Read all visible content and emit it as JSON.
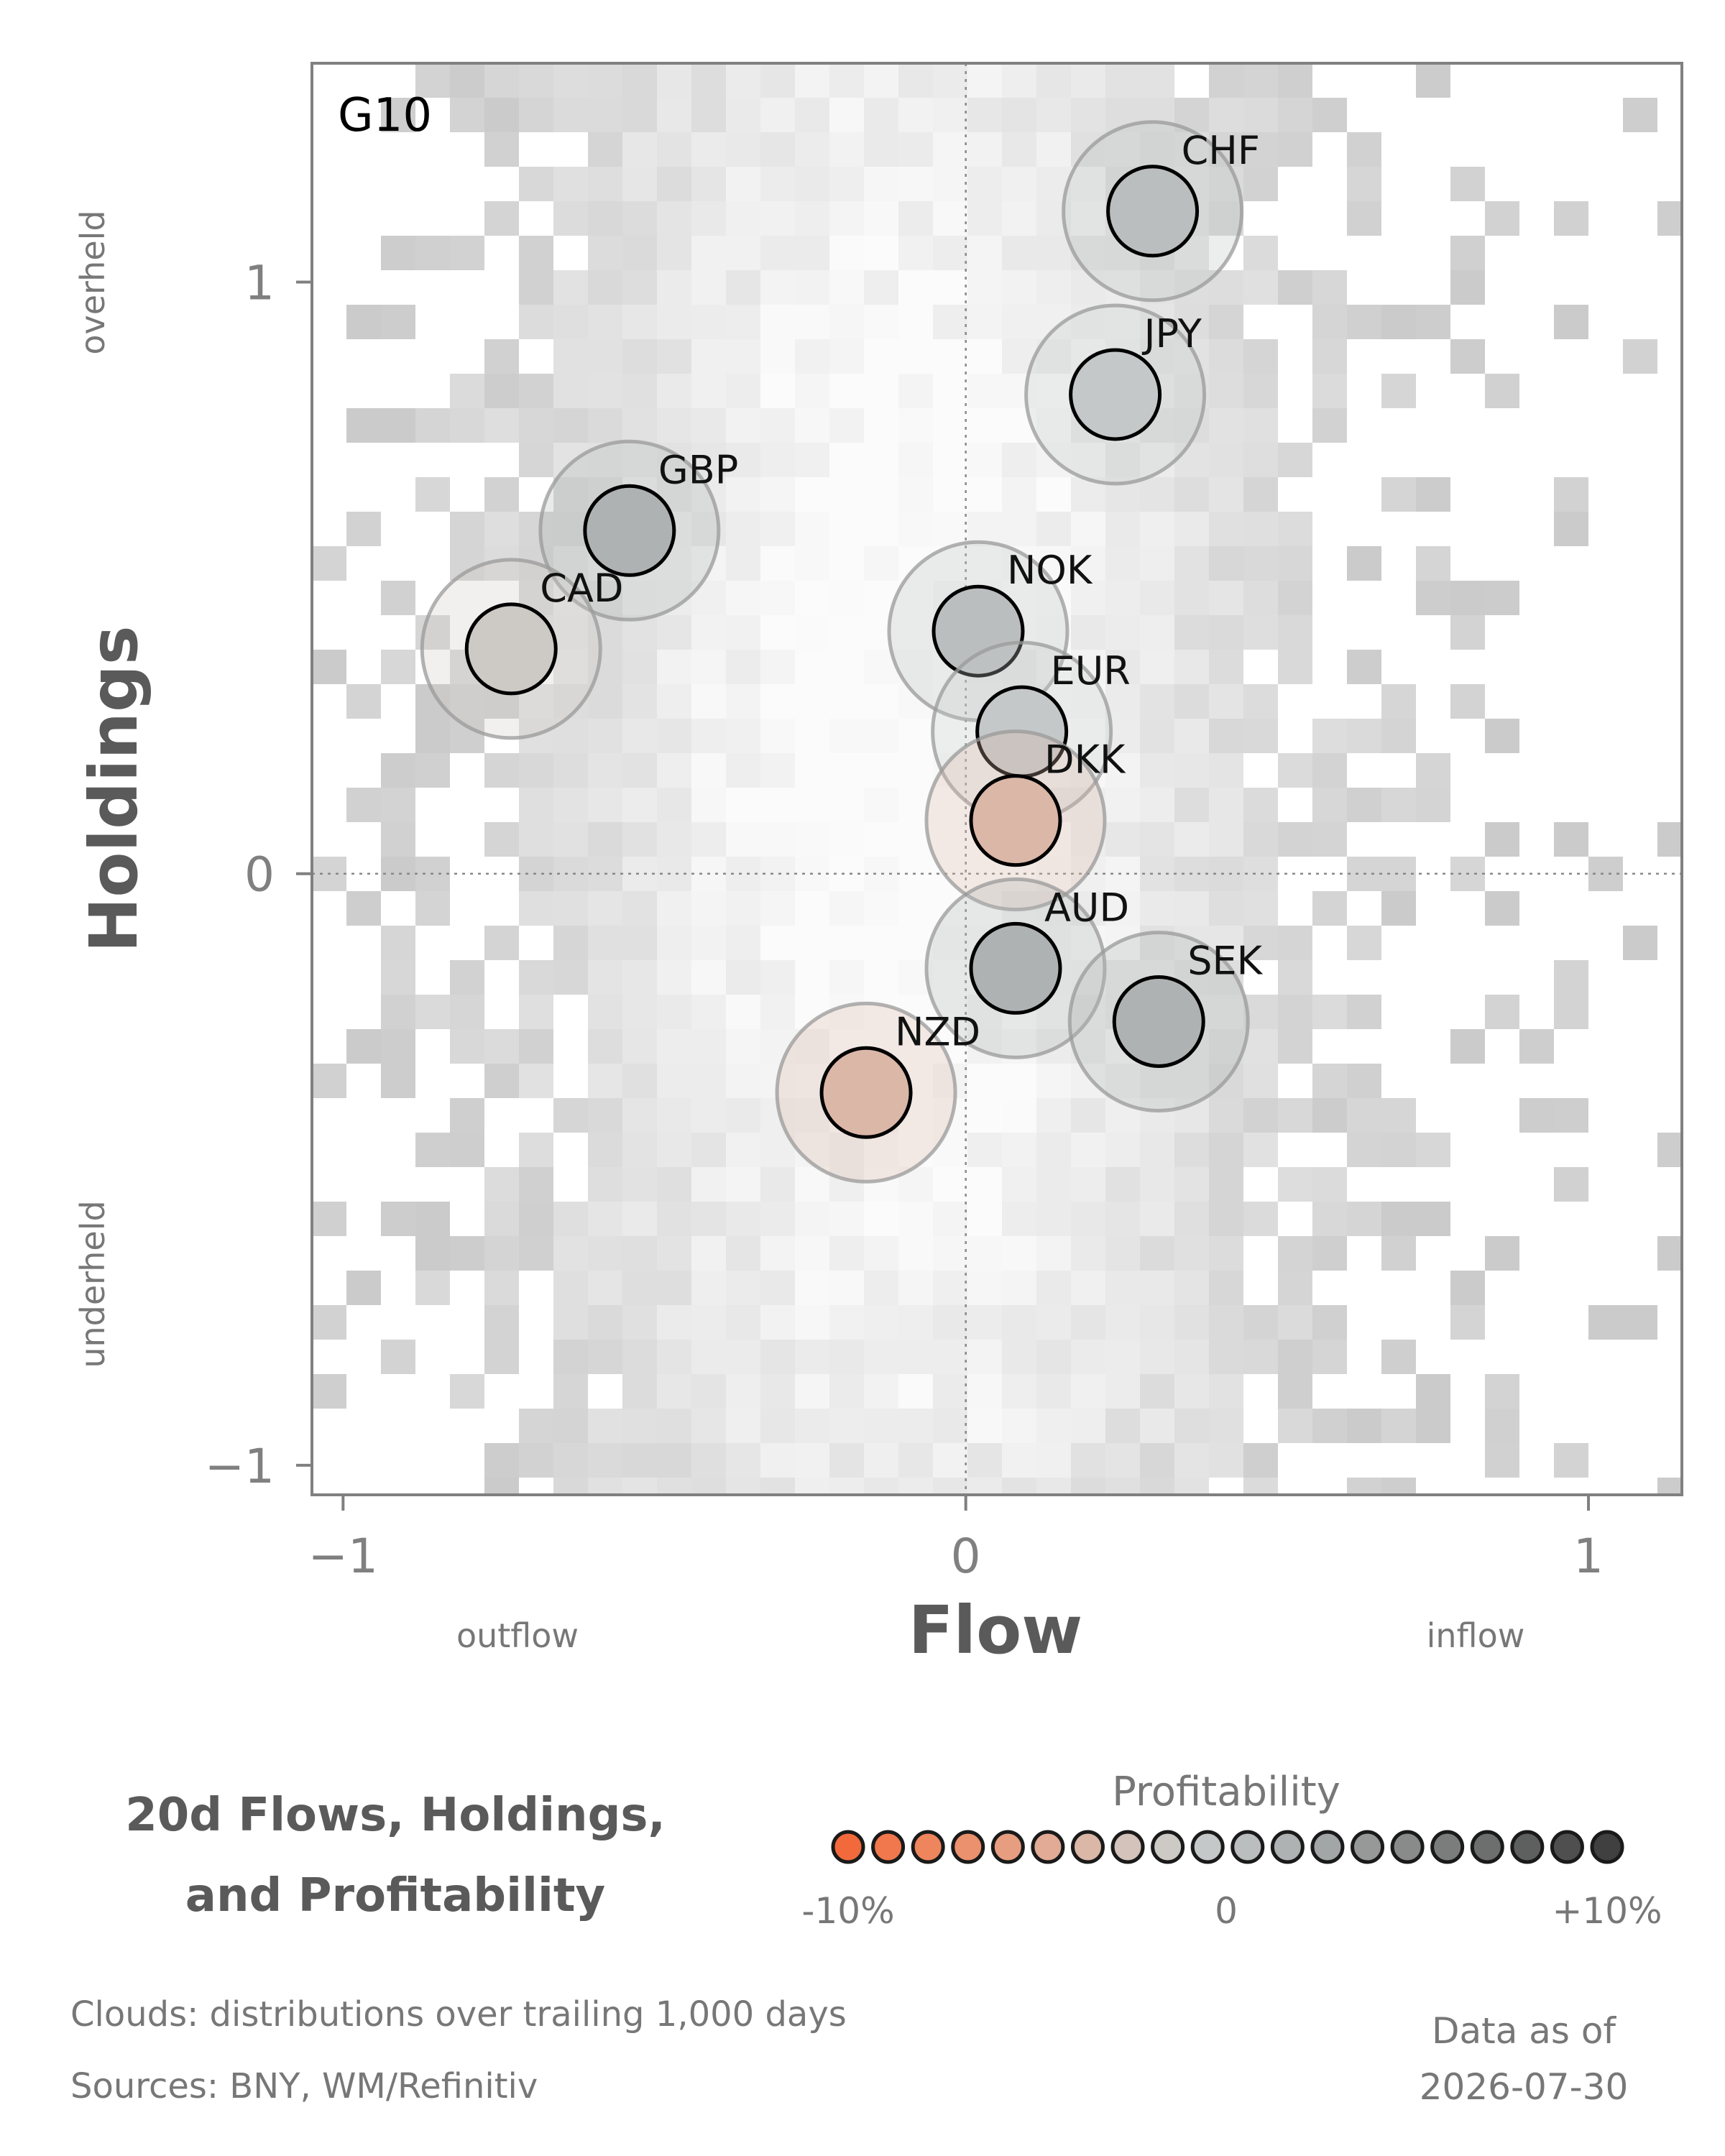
{
  "chart_data": {
    "type": "scatter",
    "panel_label": "G10",
    "xlabel": "Flow",
    "ylabel": "Holdings",
    "x_side_labels": {
      "left": "outflow",
      "right": "inflow"
    },
    "y_side_labels": {
      "top": "overheld",
      "bottom": "underheld"
    },
    "xlim": [
      -1.05,
      1.15
    ],
    "ylim": [
      -1.05,
      1.37
    ],
    "x_ticks": [
      {
        "value": -1,
        "label": "−1"
      },
      {
        "value": 0,
        "label": "0"
      },
      {
        "value": 1,
        "label": "1"
      }
    ],
    "y_ticks": [
      {
        "value": 1,
        "label": "1"
      },
      {
        "value": 0,
        "label": "0"
      },
      {
        "value": -1,
        "label": "−1"
      }
    ],
    "reference_lines": {
      "x": 0,
      "y": 0,
      "style": "dotted"
    },
    "background": "grey density cloud heatmap (distributions over trailing 1,000 days)",
    "points": [
      {
        "label": "CHF",
        "x": 0.3,
        "y": 1.12,
        "profitability": 0.5
      },
      {
        "label": "JPY",
        "x": 0.24,
        "y": 0.81,
        "profitability": -1.0
      },
      {
        "label": "GBP",
        "x": -0.54,
        "y": 0.58,
        "profitability": 1.5
      },
      {
        "label": "CAD",
        "x": -0.73,
        "y": 0.38,
        "profitability": -1.5
      },
      {
        "label": "NOK",
        "x": 0.02,
        "y": 0.41,
        "profitability": 0.5
      },
      {
        "label": "EUR",
        "x": 0.09,
        "y": 0.24,
        "profitability": -1.0
      },
      {
        "label": "DKK",
        "x": 0.08,
        "y": 0.09,
        "profitability": -4.0
      },
      {
        "label": "AUD",
        "x": 0.08,
        "y": -0.16,
        "profitability": 1.5
      },
      {
        "label": "SEK",
        "x": 0.31,
        "y": -0.25,
        "profitability": 2.0
      },
      {
        "label": "NZD",
        "x": -0.16,
        "y": -0.37,
        "profitability": -4.0
      }
    ],
    "legend": {
      "title": "Profitability",
      "range": [
        -10,
        10
      ],
      "colors": [
        "#f26a3c",
        "#f0784c",
        "#ee855c",
        "#eb916d",
        "#e79e80",
        "#e2ab95",
        "#dbb7a8",
        "#d3c3bb",
        "#cdcac6",
        "#c5c8c8",
        "#bbbebe",
        "#afb2b2",
        "#a3a6a6",
        "#979999",
        "#898b8b",
        "#7b7d7d",
        "#6d6e6e",
        "#5e5f5f",
        "#4f4f4f",
        "#404040"
      ],
      "tick_labels": {
        "min": "-10%",
        "mid": "0",
        "max": "+10%"
      }
    },
    "title_lines": [
      "20d Flows, Holdings,",
      "and Profitability"
    ]
  },
  "footer": {
    "clouds_note": "Clouds:  distributions over trailing 1,000 days",
    "sources_note": "Sources:  BNY, WM/Refinitiv",
    "asof_label": "Data as of",
    "asof_date": "2026-07-30"
  }
}
